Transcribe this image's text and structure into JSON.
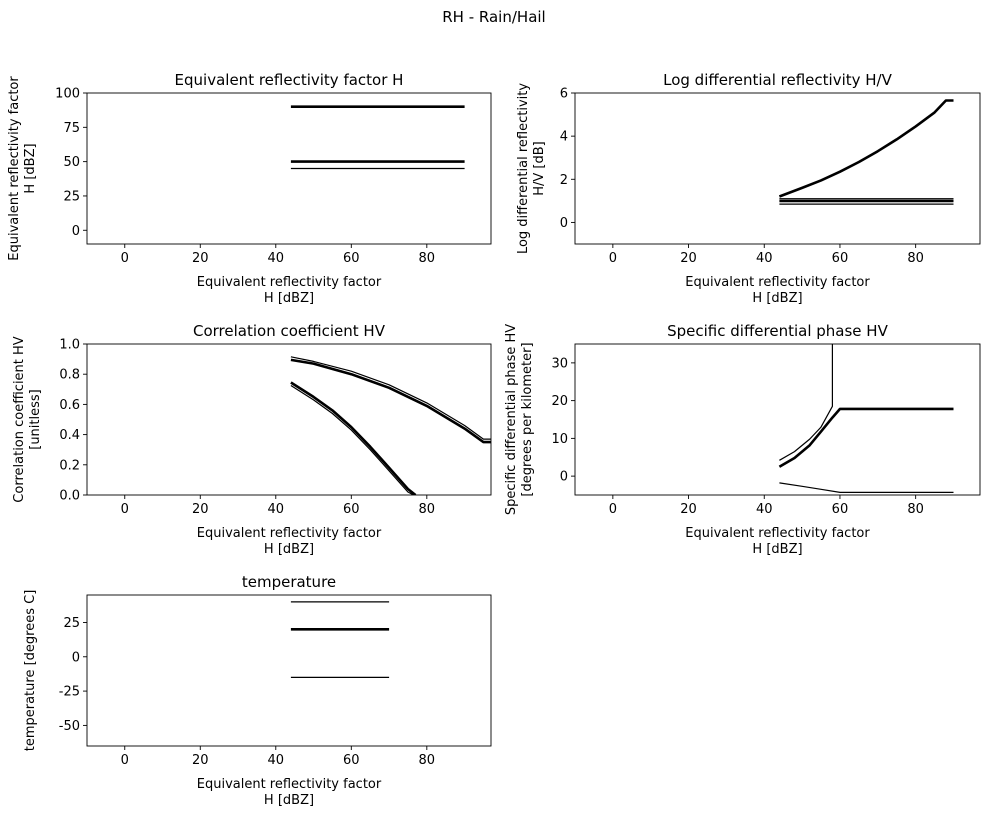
{
  "figure": {
    "title": "RH - Rain/Hail"
  },
  "chart_data": [
    {
      "type": "line",
      "title": "Equivalent reflectivity factor H",
      "xlabel": [
        "Equivalent reflectivity factor",
        "H [dBZ]"
      ],
      "ylabel": [
        "Equivalent reflectivity factor",
        "H [dBZ]"
      ],
      "xlim": [
        -10,
        97
      ],
      "ylim": [
        -10,
        100
      ],
      "xticks": [
        0,
        20,
        40,
        60,
        80
      ],
      "yticks": [
        0,
        25,
        50,
        75,
        100
      ],
      "series": [
        {
          "x": [
            44,
            90
          ],
          "y": [
            90,
            90
          ],
          "thick": true
        },
        {
          "x": [
            44,
            90
          ],
          "y": [
            50,
            50
          ],
          "thick": true
        },
        {
          "x": [
            44,
            90
          ],
          "y": [
            45,
            45
          ],
          "thick": false
        }
      ]
    },
    {
      "type": "line",
      "title": "Log differential reflectivity H/V",
      "xlabel": [
        "Equivalent reflectivity factor",
        "H [dBZ]"
      ],
      "ylabel": [
        "Log differential reflectivity",
        "H/V [dB]"
      ],
      "xlim": [
        -10,
        97
      ],
      "ylim": [
        -1,
        6
      ],
      "xticks": [
        0,
        20,
        40,
        60,
        80
      ],
      "yticks": [
        0,
        2,
        4,
        6
      ],
      "series": [
        {
          "x": [
            44,
            50,
            55,
            60,
            65,
            70,
            75,
            80,
            85,
            88,
            90
          ],
          "y": [
            1.2,
            1.6,
            1.95,
            2.35,
            2.8,
            3.3,
            3.85,
            4.45,
            5.1,
            5.65,
            5.65
          ],
          "thick": true
        },
        {
          "x": [
            44,
            90
          ],
          "y": [
            1.1,
            1.1
          ],
          "thick": false
        },
        {
          "x": [
            44,
            90
          ],
          "y": [
            1.0,
            1.0
          ],
          "thick": true
        },
        {
          "x": [
            44,
            90
          ],
          "y": [
            0.85,
            0.85
          ],
          "thick": false
        }
      ]
    },
    {
      "type": "line",
      "title": "Correlation coefficient HV",
      "xlabel": [
        "Equivalent reflectivity factor",
        "H [dBZ]"
      ],
      "ylabel": [
        "Correlation coefficient HV",
        "[unitless]"
      ],
      "xlim": [
        -10,
        97
      ],
      "ylim": [
        0,
        1
      ],
      "xticks": [
        0,
        20,
        40,
        60,
        80
      ],
      "yticks": [
        0.0,
        0.2,
        0.4,
        0.6,
        0.8,
        1.0
      ],
      "series": [
        {
          "x": [
            44,
            50,
            60,
            70,
            80,
            90,
            95,
            97
          ],
          "y": [
            0.915,
            0.885,
            0.82,
            0.73,
            0.61,
            0.46,
            0.37,
            0.37
          ],
          "thick": false
        },
        {
          "x": [
            44,
            50,
            60,
            70,
            80,
            90,
            95,
            97
          ],
          "y": [
            0.895,
            0.87,
            0.8,
            0.71,
            0.59,
            0.44,
            0.35,
            0.35
          ],
          "thick": true
        },
        {
          "x": [
            44,
            50,
            55,
            60,
            65,
            70,
            75,
            77
          ],
          "y": [
            0.745,
            0.65,
            0.56,
            0.45,
            0.32,
            0.18,
            0.04,
            0.0
          ],
          "thick": true
        },
        {
          "x": [
            44,
            50,
            55,
            60,
            65,
            70,
            75,
            76.5
          ],
          "y": [
            0.725,
            0.63,
            0.54,
            0.43,
            0.3,
            0.16,
            0.02,
            0.0
          ],
          "thick": false
        }
      ]
    },
    {
      "type": "line",
      "title": "Specific differential phase HV",
      "xlabel": [
        "Equivalent reflectivity factor",
        "H [dBZ]"
      ],
      "ylabel": [
        "Specific differential phase HV",
        "[degrees per kilometer]"
      ],
      "xlim": [
        -10,
        97
      ],
      "ylim": [
        -5,
        35
      ],
      "xticks": [
        0,
        20,
        40,
        60,
        80
      ],
      "yticks": [
        0,
        10,
        20,
        30
      ],
      "series": [
        {
          "x": [
            44,
            48,
            52,
            55,
            58,
            58,
            58
          ],
          "y": [
            4.2,
            6.5,
            9.8,
            13.0,
            18.5,
            30,
            35
          ],
          "thick": false
        },
        {
          "x": [
            44,
            48,
            52,
            55,
            58,
            60,
            90
          ],
          "y": [
            2.5,
            4.8,
            8.2,
            11.8,
            15.5,
            17.8,
            17.8
          ],
          "thick": true
        },
        {
          "x": [
            44,
            50,
            55,
            60,
            90
          ],
          "y": [
            -1.8,
            -2.7,
            -3.5,
            -4.3,
            -4.3
          ],
          "thick": false
        }
      ]
    },
    {
      "type": "line",
      "title": "temperature",
      "xlabel": [
        "Equivalent reflectivity factor",
        "H [dBZ]"
      ],
      "ylabel": [
        "temperature [degrees C]"
      ],
      "xlim": [
        -10,
        97
      ],
      "ylim": [
        -65,
        45
      ],
      "xticks": [
        0,
        20,
        40,
        60,
        80
      ],
      "yticks": [
        -50,
        -25,
        0,
        25
      ],
      "series": [
        {
          "x": [
            44,
            70
          ],
          "y": [
            40,
            40
          ],
          "thick": false
        },
        {
          "x": [
            44,
            70
          ],
          "y": [
            20,
            20
          ],
          "thick": true
        },
        {
          "x": [
            44,
            70
          ],
          "y": [
            -15,
            -15
          ],
          "thick": false
        }
      ]
    }
  ]
}
